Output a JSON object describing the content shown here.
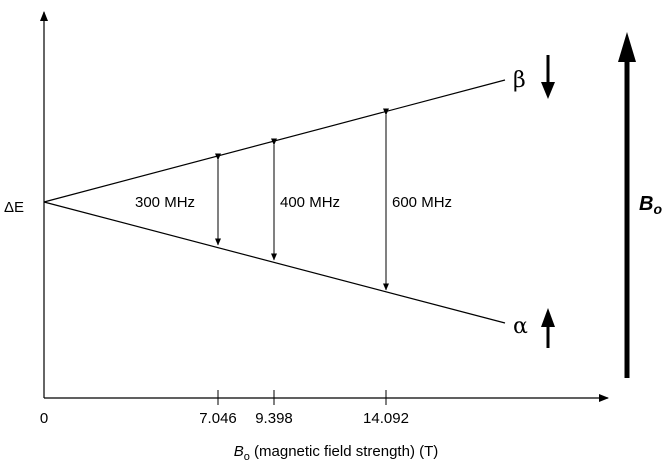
{
  "y_axis_label": "ΔE",
  "origin_label": "0",
  "x_axis": {
    "label_symbol": "B",
    "label_subscript": "o",
    "label_rest": " (magnetic field strength) (T)",
    "ticks": [
      "7.046",
      "9.398",
      "14.092"
    ]
  },
  "splittings": [
    {
      "field": 7.046,
      "label": "300 MHz"
    },
    {
      "field": 9.398,
      "label": "400 MHz"
    },
    {
      "field": 14.092,
      "label": "600 MHz"
    }
  ],
  "states": {
    "upper": "β",
    "lower": "α"
  },
  "field_arrow": {
    "symbol": "B",
    "subscript": "o"
  }
}
